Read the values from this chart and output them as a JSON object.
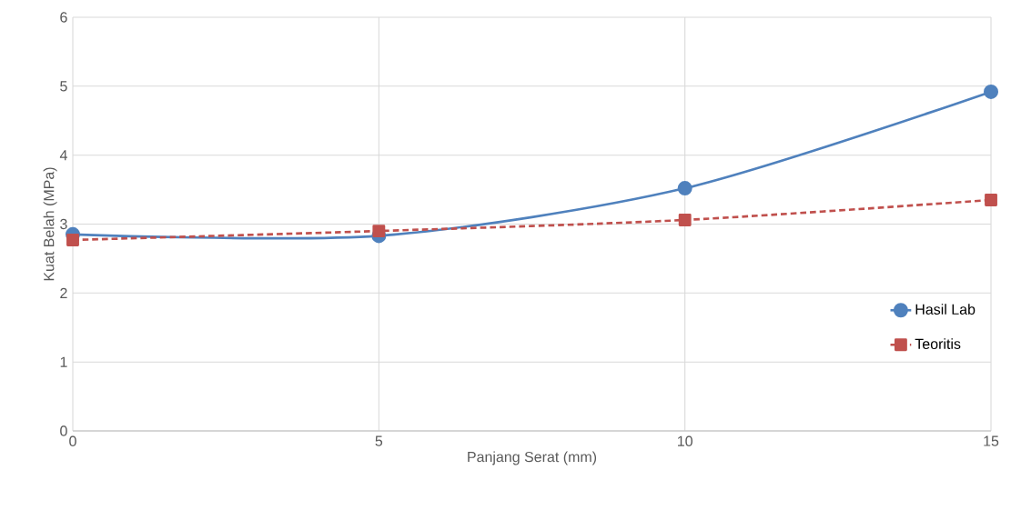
{
  "chart_data": {
    "type": "line",
    "xlabel": "Panjang Serat (mm)",
    "ylabel": "Kuat Belah (MPa)",
    "x": [
      0,
      5,
      10,
      15
    ],
    "series": [
      {
        "name": "Hasil Lab",
        "color": "#4f81bd",
        "values": [
          2.85,
          2.83,
          3.52,
          4.92
        ],
        "marker": "circle",
        "line_style": "solid"
      },
      {
        "name": "Teoritis",
        "color": "#c0504d",
        "values": [
          2.77,
          2.9,
          3.06,
          3.35
        ],
        "marker": "square",
        "line_style": "dashed"
      }
    ],
    "xlim": [
      0,
      15
    ],
    "xticks": [
      0,
      5,
      10,
      15
    ],
    "ylim": [
      0,
      6
    ],
    "yticks": [
      0,
      1,
      2,
      3,
      4,
      5,
      6
    ],
    "grid": true,
    "legend": "right"
  }
}
